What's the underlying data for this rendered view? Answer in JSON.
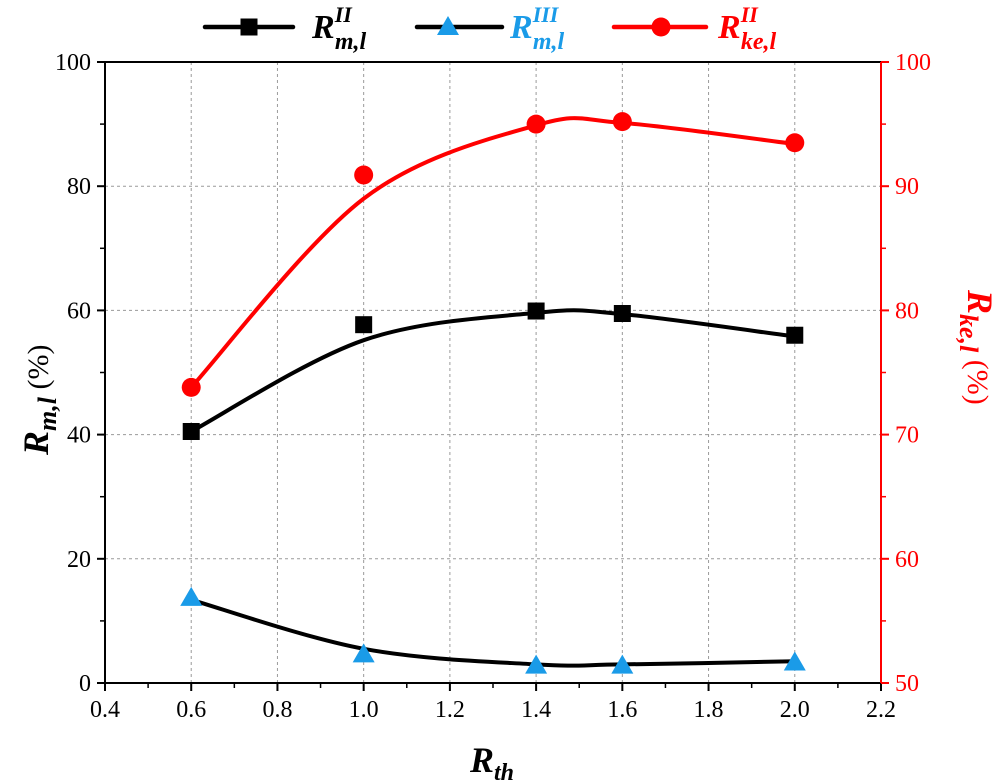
{
  "chart_data": {
    "type": "line",
    "x": [
      0.6,
      1.0,
      1.4,
      1.6,
      2.0
    ],
    "xlabel": {
      "main": "R",
      "sub": "th"
    },
    "xlim": [
      0.4,
      2.2
    ],
    "xticks": [
      "0.4",
      "0.6",
      "0.8",
      "1.0",
      "1.2",
      "1.4",
      "1.6",
      "1.8",
      "2.0",
      "2.2"
    ],
    "ylabel_left": {
      "main": "R",
      "sub": "m,l",
      "unit": " (%)"
    },
    "ylim_left": [
      0,
      100
    ],
    "yticks_left": [
      "0",
      "20",
      "40",
      "60",
      "80",
      "100"
    ],
    "ylabel_right": {
      "main": "R",
      "sub": "ke,l",
      "unit": " (%)"
    },
    "ylim_right": [
      50,
      100
    ],
    "yticks_right": [
      "50",
      "60",
      "70",
      "80",
      "90",
      "100"
    ],
    "grid": true,
    "legend_position": "top",
    "series": [
      {
        "name": {
          "main": "R",
          "sup": "II",
          "sub": "m,l"
        },
        "axis": "left",
        "marker": "square",
        "marker_color": "#000000",
        "line_color": "#000000",
        "values": [
          40.5,
          57.7,
          59.9,
          59.5,
          56.0
        ],
        "fit": [
          40.5,
          55.2,
          59.6,
          59.4,
          55.8
        ]
      },
      {
        "name": {
          "main": "R",
          "sup": "III",
          "sub": "m,l"
        },
        "axis": "left",
        "marker": "triangle",
        "marker_color": "#1a9be8",
        "line_color": "#000000",
        "values": [
          13.7,
          4.6,
          2.8,
          2.8,
          3.3
        ],
        "fit": [
          13.4,
          5.5,
          3.0,
          3.0,
          3.5
        ]
      },
      {
        "name": {
          "main": "R",
          "sup": "II",
          "sub": "ke,l"
        },
        "axis": "right",
        "marker": "circle",
        "marker_color": "#ff0000",
        "line_color": "#ff0000",
        "values": [
          73.8,
          90.9,
          95.0,
          95.2,
          93.5
        ],
        "fit": [
          73.8,
          89.0,
          94.9,
          95.1,
          93.4
        ]
      }
    ],
    "colors": {
      "right_axis": "#ff0000",
      "grid": "#9a9a9a",
      "axis": "#000000"
    }
  }
}
